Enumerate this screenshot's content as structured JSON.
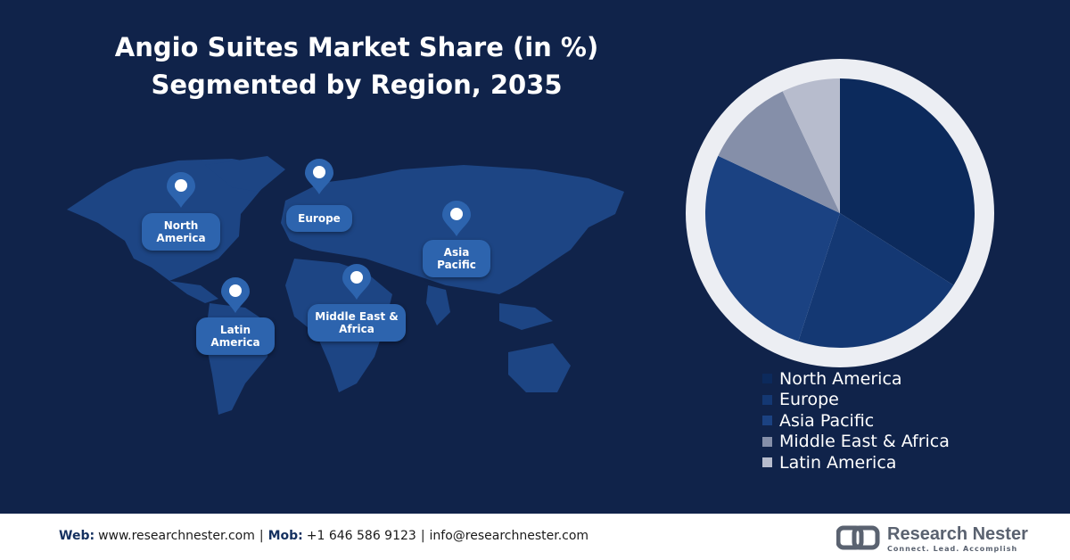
{
  "chart_data": {
    "type": "pie",
    "title": "Angio Suites Market Share (in %)",
    "subtitle": "Segmented by Region, 2035",
    "categories": [
      "North America",
      "Europe",
      "Asia Pacific",
      "Middle East & Africa",
      "Latin America"
    ],
    "values": [
      34,
      21,
      27,
      11,
      7
    ],
    "colors": [
      "#0c2a5c",
      "#143873",
      "#1b4282",
      "#858fa9",
      "#b7bccd"
    ],
    "legend": "bottom"
  },
  "map_labels": [
    "North America",
    "Europe",
    "Asia Pacific",
    "Latin America",
    "Middle East & Africa"
  ],
  "footer": {
    "items": [
      {
        "label": "Web:",
        "text": "www.researchnester.com"
      },
      {
        "label": "Mob:",
        "text": "+1 646 586 9123"
      },
      {
        "text": "info@researchnester.com"
      }
    ],
    "separator": "|"
  },
  "logo": {
    "name": "Research Nester",
    "tagline": "Connect. Lead. Accomplish"
  }
}
